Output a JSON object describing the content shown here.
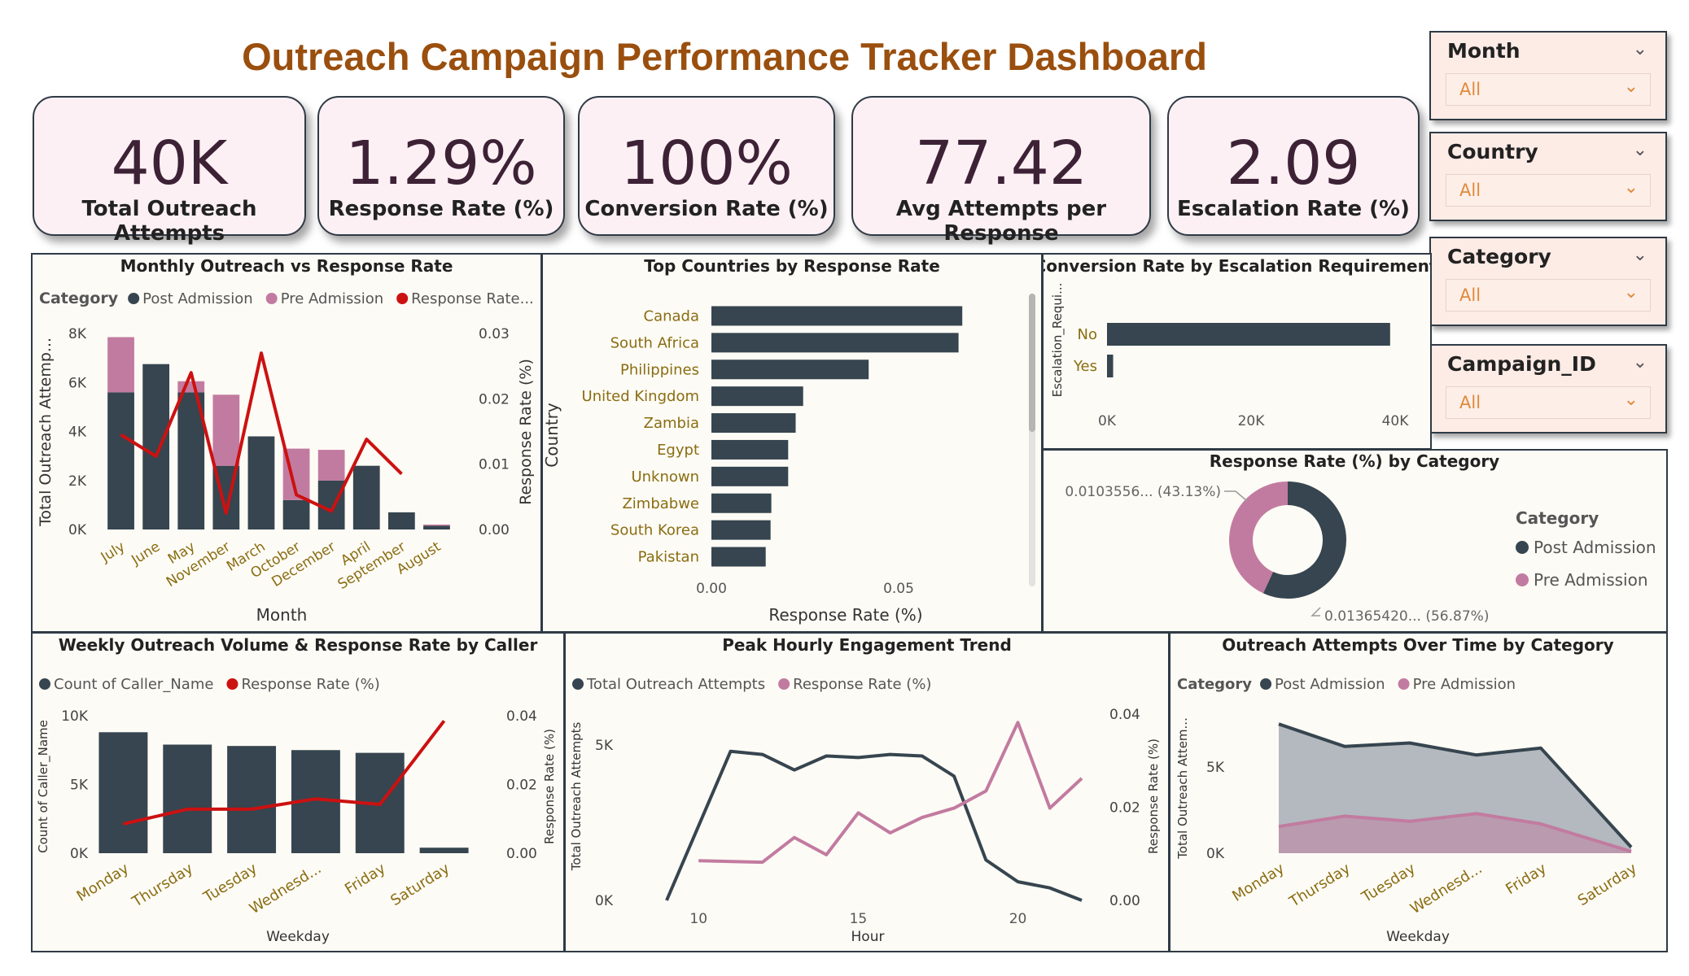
{
  "header": {
    "title": "Outreach Campaign Performance Tracker Dashboard"
  },
  "kpis": [
    {
      "value": "40K",
      "label": "Total Outreach Attempts"
    },
    {
      "value": "1.29%",
      "label": "Response Rate (%)"
    },
    {
      "value": "100%",
      "label": "Conversion Rate (%)"
    },
    {
      "value": "77.42",
      "label": "Avg Attempts per Response"
    },
    {
      "value": "2.09",
      "label": "Escalation Rate (%)"
    }
  ],
  "slicers": [
    {
      "title": "Month",
      "value": "All"
    },
    {
      "title": "Country",
      "value": "All"
    },
    {
      "title": "Category",
      "value": "All"
    },
    {
      "title": "Campaign_ID",
      "value": "All"
    }
  ],
  "colors": {
    "dark": "#36454f",
    "pink": "#c27ba0",
    "red": "#cc1111",
    "olive": "#8a6d12",
    "title": "#9a4f0e"
  },
  "chart_data": [
    {
      "id": "monthly",
      "type": "bar",
      "title": "Monthly Outreach vs Response Rate",
      "legend_title": "Category",
      "legend": [
        "Post Admission",
        "Pre Admission",
        "Response Rate..."
      ],
      "categories": [
        "July",
        "June",
        "May",
        "November",
        "March",
        "October",
        "December",
        "April",
        "September",
        "August"
      ],
      "series": [
        {
          "name": "Post Admission",
          "values": [
            5600,
            6750,
            5600,
            2600,
            3800,
            1200,
            2000,
            2600,
            700,
            150
          ]
        },
        {
          "name": "Pre Admission",
          "values": [
            2250,
            0,
            450,
            2900,
            0,
            2100,
            1250,
            0,
            0,
            50
          ]
        },
        {
          "name": "Response Rate...",
          "axis": "right",
          "values": [
            0.0145,
            0.0112,
            0.024,
            0.0025,
            0.027,
            0.0053,
            0.0028,
            0.0138,
            0.0085,
            null
          ]
        }
      ],
      "xlabel": "Month",
      "ylabel": "Total Outreach Attemp...",
      "y2label": "Response Rate (%)",
      "ylim": [
        0,
        8000
      ],
      "yticks": [
        "0K",
        "2K",
        "4K",
        "6K",
        "8K"
      ],
      "y2lim": [
        0,
        0.03
      ],
      "y2ticks": [
        "0.00",
        "0.01",
        "0.02",
        "0.03"
      ]
    },
    {
      "id": "countries",
      "type": "bar",
      "orientation": "horizontal",
      "title": "Top Countries by Response Rate",
      "categories": [
        "Canada",
        "South Africa",
        "Philippines",
        "United Kingdom",
        "Zambia",
        "Egypt",
        "Unknown",
        "Zimbabwe",
        "South Korea",
        "Pakistan"
      ],
      "values": [
        0.067,
        0.066,
        0.042,
        0.0245,
        0.0225,
        0.0205,
        0.0205,
        0.016,
        0.0158,
        0.0145
      ],
      "xlabel": "Response Rate (%)",
      "ylabel": "Country",
      "xlim": [
        0,
        0.08
      ],
      "xticks": [
        "0.00",
        "0.05"
      ]
    },
    {
      "id": "escalation",
      "type": "bar",
      "orientation": "horizontal",
      "title": "Conversion Rate by Escalation Requirement",
      "categories": [
        "No",
        "Yes"
      ],
      "values": [
        39300,
        850
      ],
      "ylabel": "Escalation_Requi...",
      "xlim": [
        0,
        40000
      ],
      "xticks": [
        "0K",
        "20K",
        "40K"
      ]
    },
    {
      "id": "donut",
      "type": "pie",
      "title": "Response Rate (%) by Category",
      "legend_title": "Category",
      "slices": [
        {
          "name": "Post Admission",
          "value": 0.0136542,
          "label": "0.01365420... (56.87%)"
        },
        {
          "name": "Pre Admission",
          "value": 0.0103556,
          "label": "0.0103556... (43.13%)"
        }
      ]
    },
    {
      "id": "weekly",
      "type": "bar",
      "title": "Weekly Outreach Volume & Response Rate by Caller",
      "legend": [
        "Count of Caller_Name",
        "Response Rate (%)"
      ],
      "categories": [
        "Monday",
        "Thursday",
        "Tuesday",
        "Wednesd...",
        "Friday",
        "Saturday"
      ],
      "series": [
        {
          "name": "Count of Caller_Name",
          "values": [
            8800,
            7900,
            7800,
            7500,
            7300,
            400
          ]
        },
        {
          "name": "Response Rate (%)",
          "axis": "right",
          "values": [
            0.0085,
            0.0128,
            0.0128,
            0.0158,
            0.0142,
            0.0385
          ]
        }
      ],
      "xlabel": "Weekday",
      "ylabel": "Count of Caller_Name",
      "y2label": "Response Rate (%)",
      "ylim": [
        0,
        10000
      ],
      "yticks": [
        "0K",
        "5K",
        "10K"
      ],
      "y2lim": [
        0,
        0.04
      ],
      "y2ticks": [
        "0.00",
        "0.02",
        "0.04"
      ]
    },
    {
      "id": "hourly",
      "type": "line",
      "title": "Peak Hourly Engagement Trend",
      "legend": [
        "Total Outreach Attempts",
        "Response Rate (%)"
      ],
      "x": [
        9,
        10,
        11,
        12,
        13,
        14,
        15,
        16,
        17,
        18,
        19,
        20,
        21,
        22
      ],
      "series": [
        {
          "name": "Total Outreach Attempts",
          "values": [
            0,
            null,
            4800,
            4700,
            4200,
            4650,
            4600,
            4700,
            4650,
            4000,
            1300,
            600,
            400,
            0
          ]
        },
        {
          "name": "Response Rate (%)",
          "axis": "right",
          "values": [
            null,
            0.0085,
            null,
            0.0082,
            0.0135,
            0.0098,
            0.0188,
            0.0145,
            0.0178,
            0.0198,
            0.0235,
            0.0382,
            0.0198,
            0.0262
          ]
        }
      ],
      "xlabel": "Hour",
      "ylabel": "Total Outreach Attempts",
      "y2label": "Response Rate (%)",
      "xlim": [
        8.5,
        22.5
      ],
      "xticks": [
        "10",
        "15",
        "20"
      ],
      "ylim": [
        0,
        6000
      ],
      "yticks": [
        "0K",
        "5K"
      ],
      "y2lim": [
        0,
        0.04
      ],
      "y2ticks": [
        "0.00",
        "0.02",
        "0.04"
      ]
    },
    {
      "id": "area",
      "type": "area",
      "title": "Outreach Attempts Over Time by Category",
      "legend_title": "Category",
      "legend": [
        "Post Admission",
        "Pre Admission"
      ],
      "categories": [
        "Monday",
        "Thursday",
        "Tuesday",
        "Wednesd...",
        "Friday",
        "Saturday"
      ],
      "series": [
        {
          "name": "Post Admission",
          "values": [
            7500,
            6200,
            6400,
            5700,
            6100,
            350
          ]
        },
        {
          "name": "Pre Admission",
          "values": [
            1550,
            2150,
            1850,
            2300,
            1700,
            100
          ]
        }
      ],
      "xlabel": "Weekday",
      "ylabel": "Total Outreach Attem...",
      "ylim": [
        0,
        8500
      ],
      "yticks": [
        "0K",
        "5K"
      ]
    }
  ]
}
